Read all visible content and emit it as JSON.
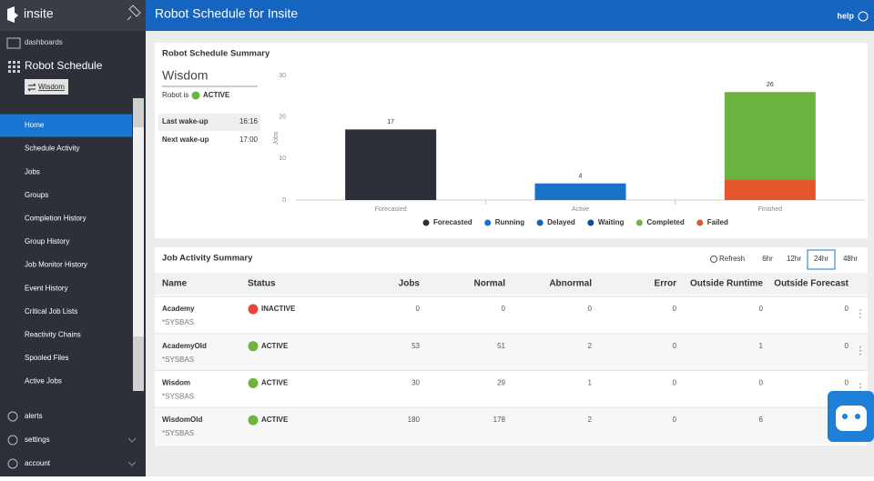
{
  "sidebar": {
    "logo": "insite",
    "dashboards": "dashboards",
    "section": "Robot Schedule",
    "system": "Wisdom",
    "menu": [
      "Home",
      "Schedule Activity",
      "Jobs",
      "Groups",
      "Completion History",
      "Group History",
      "Job Monitor History",
      "Event History",
      "Critical Job Lists",
      "Reactivity Chains",
      "Spooled Files",
      "Active Jobs"
    ],
    "selected_menu": 0,
    "bottom": [
      "alerts",
      "settings",
      "account"
    ]
  },
  "header": {
    "title": "Robot Schedule for Insite",
    "help": "help"
  },
  "summary": {
    "title": "Robot Schedule Summary",
    "system": "Wisdom",
    "robot_is": "Robot is",
    "status": "ACTIVE",
    "wake": [
      [
        "Last wake-up",
        "16:16"
      ],
      [
        "Next wake-up",
        "17:00"
      ]
    ]
  },
  "chart_data": {
    "type": "bar",
    "stacked": true,
    "y_label": "Jobs",
    "categories": [
      "Forecasted",
      "Active",
      "Finished"
    ],
    "series": [
      {
        "name": "Forecasted",
        "color": "#2b2f37",
        "values": [
          17,
          0,
          0
        ]
      },
      {
        "name": "Running",
        "color": "#1a73c8",
        "values": [
          0,
          4,
          0
        ]
      },
      {
        "name": "Delayed",
        "color": "#1565b0",
        "values": [
          0,
          0,
          0
        ]
      },
      {
        "name": "Waiting",
        "color": "#0d4f94",
        "values": [
          0,
          0,
          0
        ]
      },
      {
        "name": "Failed",
        "color": "#e4572e",
        "values": [
          0,
          0,
          5
        ]
      },
      {
        "name": "Completed",
        "color": "#6cb33f",
        "values": [
          0,
          0,
          21
        ]
      }
    ],
    "legend_order": [
      0,
      1,
      2,
      3,
      5,
      4
    ],
    "totals": [
      17,
      4,
      26
    ],
    "ylim": [
      0,
      30
    ],
    "yticks": [
      0,
      10,
      20,
      30
    ],
    "grid": false
  },
  "jobs": {
    "title": "Job Activity Summary",
    "refresh": "Refresh",
    "ranges": [
      "6hr",
      "12hr",
      "24hr",
      "48hr"
    ],
    "selected_range": 2,
    "columns": [
      "Name",
      "Status",
      "Jobs",
      "Normal",
      "Abnormal",
      "Error",
      "Outside Runtime",
      "Outside Forecast"
    ],
    "rows": [
      {
        "name": "Academy",
        "library": "*SYSBAS",
        "status": "INACTIVE",
        "status_color": "#e8453c",
        "values": [
          0,
          0,
          0,
          0,
          0,
          0
        ]
      },
      {
        "name": "AcademyOld",
        "library": "*SYSBAS",
        "status": "ACTIVE",
        "status_color": "#6cb33f",
        "values": [
          53,
          51,
          2,
          0,
          1,
          0
        ]
      },
      {
        "name": "Wisdom",
        "library": "*SYSBAS",
        "status": "ACTIVE",
        "status_color": "#6cb33f",
        "values": [
          30,
          29,
          1,
          0,
          0,
          0
        ]
      },
      {
        "name": "WisdomOld",
        "library": "*SYSBAS",
        "status": "ACTIVE",
        "status_color": "#6cb33f",
        "values": [
          180,
          178,
          2,
          0,
          6,
          null
        ]
      }
    ]
  }
}
